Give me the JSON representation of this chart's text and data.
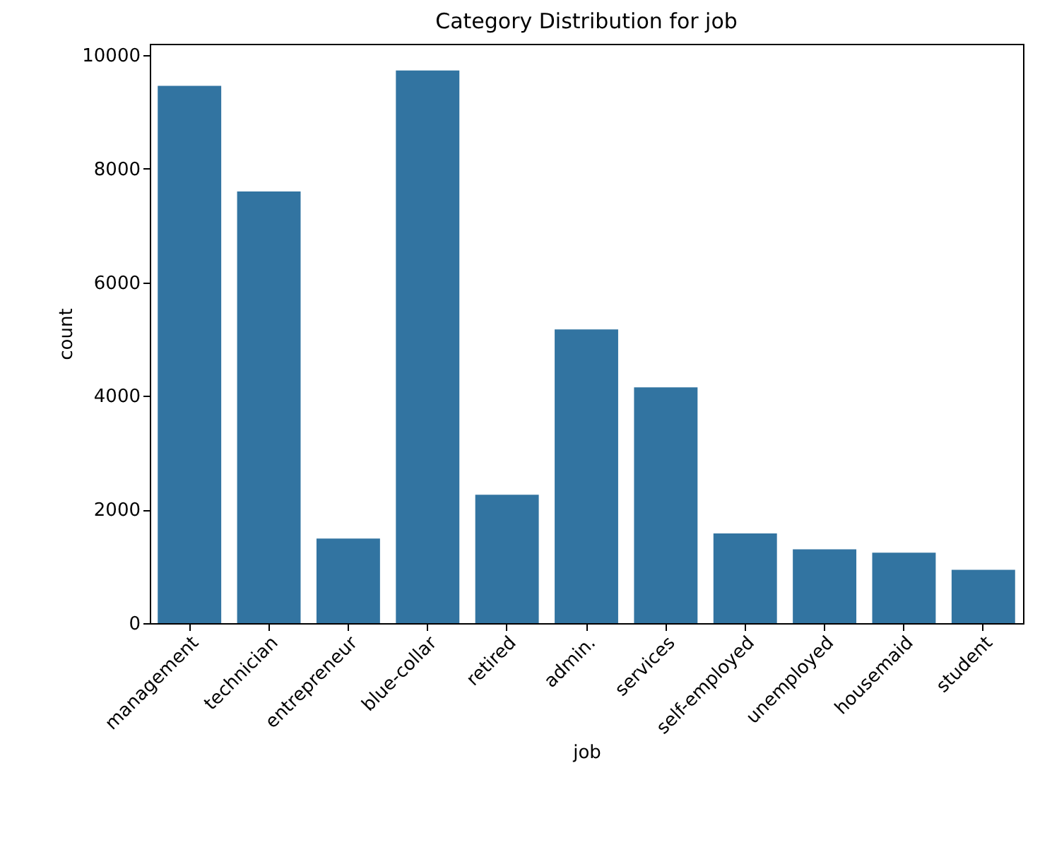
{
  "chart_data": {
    "type": "bar",
    "title": "Category Distribution for job",
    "xlabel": "job",
    "ylabel": "count",
    "categories": [
      "management",
      "technician",
      "entrepreneur",
      "blue-collar",
      "retired",
      "admin.",
      "services",
      "self-employed",
      "unemployed",
      "housemaid",
      "student"
    ],
    "values": [
      9460,
      7600,
      1490,
      9730,
      2260,
      5170,
      4150,
      1580,
      1300,
      1240,
      940
    ],
    "color": "#3274a1",
    "ylim": [
      0,
      10200
    ],
    "yticks": [
      0,
      2000,
      4000,
      6000,
      8000,
      10000
    ],
    "grid": false
  }
}
